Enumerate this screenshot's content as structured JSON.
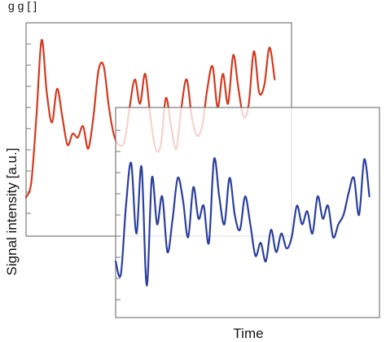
{
  "header_text": "g                        g     [  ]",
  "chart_data": [
    {
      "type": "line",
      "xlabel": "",
      "ylabel": "",
      "xlim": [
        0,
        100
      ],
      "ylim": [
        0,
        100
      ],
      "grid": false,
      "series": [
        {
          "color": "#d43a1f",
          "x": [
            0,
            2,
            4,
            6,
            8,
            10,
            12,
            14,
            16,
            18,
            20,
            22,
            24,
            26,
            28,
            30,
            32,
            34,
            36,
            38,
            40,
            42,
            44,
            46,
            48,
            50,
            52,
            54,
            56,
            58,
            60,
            62,
            64,
            66,
            68,
            70,
            72,
            74,
            76,
            78,
            80,
            82,
            84,
            86,
            88,
            90,
            92,
            94,
            96
          ],
          "y": [
            12,
            20,
            55,
            96,
            68,
            52,
            70,
            55,
            40,
            46,
            44,
            50,
            38,
            55,
            80,
            82,
            60,
            45,
            40,
            42,
            60,
            75,
            62,
            78,
            55,
            38,
            40,
            65,
            50,
            38,
            60,
            75,
            55,
            45,
            50,
            70,
            82,
            60,
            78,
            62,
            88,
            70,
            55,
            62,
            90,
            68,
            72,
            92,
            75
          ]
        }
      ]
    },
    {
      "type": "line",
      "xlabel": "Time",
      "ylabel": "Signal intensity [a.u.]",
      "xlim": [
        0,
        100
      ],
      "ylim": [
        0,
        100
      ],
      "grid": false,
      "series": [
        {
          "color": "#2b3f9e",
          "x": [
            0,
            2,
            4,
            6,
            8,
            10,
            12,
            14,
            16,
            18,
            20,
            22,
            24,
            26,
            28,
            30,
            32,
            34,
            36,
            38,
            40,
            42,
            44,
            46,
            48,
            50,
            52,
            54,
            56,
            58,
            60,
            62,
            64,
            66,
            68,
            70,
            72,
            74,
            76,
            78,
            80,
            82,
            84,
            86,
            88,
            90,
            92,
            94,
            96,
            98
          ],
          "y": [
            25,
            18,
            55,
            78,
            40,
            76,
            12,
            70,
            45,
            60,
            30,
            48,
            70,
            58,
            38,
            65,
            48,
            55,
            35,
            80,
            60,
            45,
            70,
            50,
            42,
            60,
            45,
            28,
            35,
            25,
            42,
            30,
            40,
            32,
            38,
            55,
            45,
            52,
            40,
            60,
            48,
            55,
            38,
            45,
            50,
            62,
            70,
            50,
            80,
            60
          ]
        }
      ]
    }
  ]
}
